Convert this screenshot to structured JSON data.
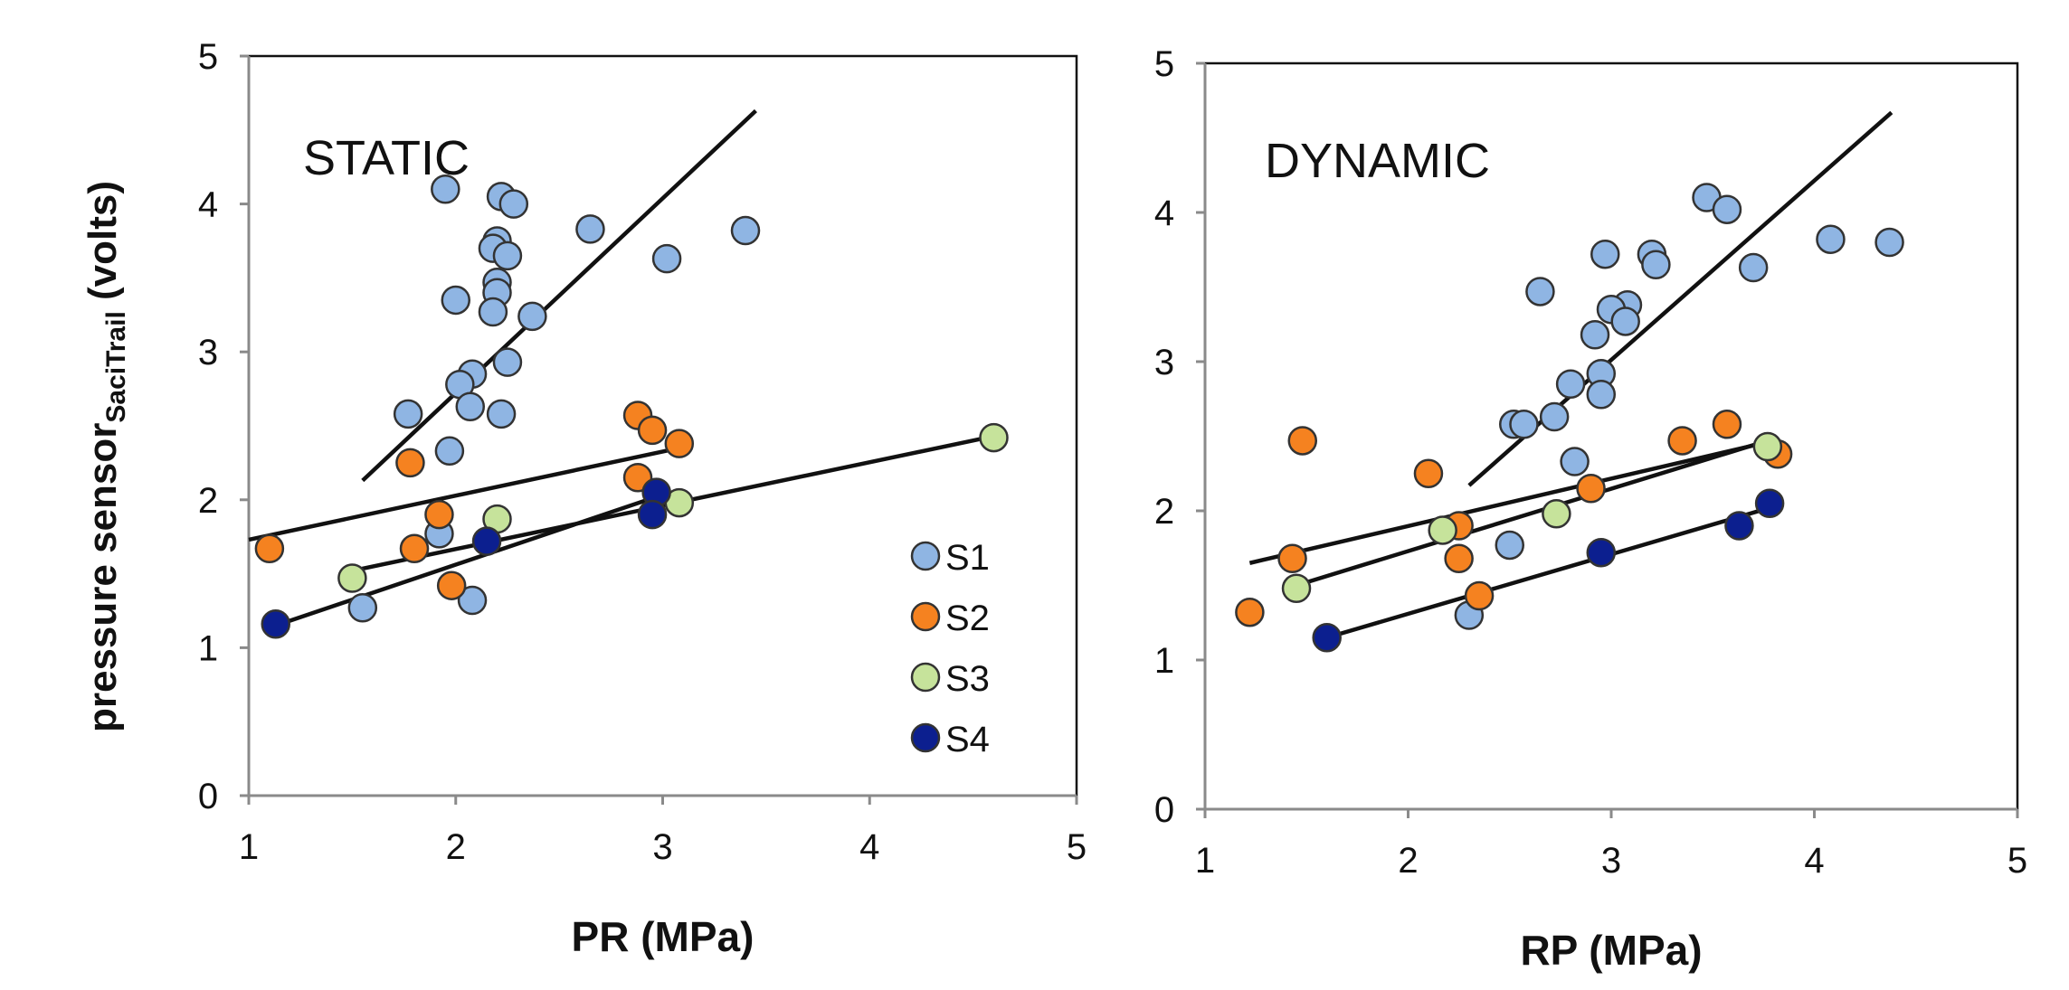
{
  "y_label_main": "pressure sensor",
  "y_label_sub": "SaciTrail",
  "y_label_unit": " (volts)",
  "legend": [
    {
      "label": "S1",
      "color": "#8fb5e3"
    },
    {
      "label": "S2",
      "color": "#f58220"
    },
    {
      "label": "S3",
      "color": "#c6e39b"
    },
    {
      "label": "S4",
      "color": "#0c1f8f"
    }
  ],
  "chart_data": [
    {
      "type": "scatter",
      "annotation": "STATIC",
      "xlabel": "PR (MPa)",
      "xlim": [
        1,
        5
      ],
      "ylim": [
        0,
        5
      ],
      "xticks": [
        "1",
        "2",
        "3",
        "4",
        "5"
      ],
      "yticks": [
        "0",
        "1",
        "2",
        "3",
        "4",
        "5"
      ],
      "series": [
        {
          "name": "S1",
          "color": "#8fb5e3",
          "points": [
            [
              1.95,
              4.1
            ],
            [
              2.22,
              4.05
            ],
            [
              2.28,
              4.0
            ],
            [
              2.65,
              3.83
            ],
            [
              3.4,
              3.82
            ],
            [
              2.2,
              3.75
            ],
            [
              2.18,
              3.7
            ],
            [
              2.25,
              3.65
            ],
            [
              3.02,
              3.63
            ],
            [
              2.2,
              3.47
            ],
            [
              2.2,
              3.4
            ],
            [
              2.0,
              3.35
            ],
            [
              2.18,
              3.27
            ],
            [
              2.37,
              3.24
            ],
            [
              2.25,
              2.93
            ],
            [
              2.08,
              2.85
            ],
            [
              2.02,
              2.78
            ],
            [
              1.77,
              2.58
            ],
            [
              2.07,
              2.63
            ],
            [
              2.22,
              2.58
            ],
            [
              1.97,
              2.33
            ],
            [
              1.92,
              1.77
            ],
            [
              1.55,
              1.27
            ],
            [
              2.08,
              1.32
            ]
          ],
          "fit": [
            [
              1.55,
              2.13
            ],
            [
              3.45,
              4.63
            ]
          ]
        },
        {
          "name": "S2",
          "color": "#f58220",
          "points": [
            [
              1.78,
              2.25
            ],
            [
              2.88,
              2.57
            ],
            [
              2.95,
              2.47
            ],
            [
              3.08,
              2.38
            ],
            [
              2.88,
              2.15
            ],
            [
              1.92,
              1.9
            ],
            [
              1.8,
              1.67
            ],
            [
              1.1,
              1.67
            ],
            [
              1.98,
              1.42
            ]
          ],
          "fit": [
            [
              1.0,
              1.73
            ],
            [
              3.08,
              2.35
            ]
          ]
        },
        {
          "name": "S3",
          "color": "#c6e39b",
          "points": [
            [
              4.6,
              2.42
            ],
            [
              2.2,
              1.87
            ],
            [
              3.08,
              1.98
            ],
            [
              1.5,
              1.47
            ]
          ],
          "fit": [
            [
              1.5,
              1.52
            ],
            [
              4.6,
              2.43
            ]
          ]
        },
        {
          "name": "S4",
          "color": "#0c1f8f",
          "points": [
            [
              2.97,
              2.05
            ],
            [
              2.95,
              1.9
            ],
            [
              2.15,
              1.72
            ],
            [
              1.13,
              1.16
            ]
          ],
          "fit": [
            [
              1.13,
              1.15
            ],
            [
              2.97,
              2.02
            ]
          ]
        }
      ]
    },
    {
      "type": "scatter",
      "annotation": "DYNAMIC",
      "xlabel": "RP (MPa)",
      "xlim": [
        1,
        5
      ],
      "ylim": [
        0,
        5
      ],
      "xticks": [
        "1",
        "2",
        "3",
        "4",
        "5"
      ],
      "yticks": [
        "0",
        "1",
        "2",
        "3",
        "4",
        "5"
      ],
      "series": [
        {
          "name": "S1",
          "color": "#8fb5e3",
          "points": [
            [
              3.47,
              4.1
            ],
            [
              3.57,
              4.02
            ],
            [
              4.08,
              3.82
            ],
            [
              4.37,
              3.8
            ],
            [
              3.2,
              3.72
            ],
            [
              2.97,
              3.72
            ],
            [
              3.22,
              3.65
            ],
            [
              3.7,
              3.63
            ],
            [
              2.65,
              3.47
            ],
            [
              3.08,
              3.38
            ],
            [
              3.0,
              3.35
            ],
            [
              3.07,
              3.27
            ],
            [
              2.92,
              3.18
            ],
            [
              2.95,
              2.92
            ],
            [
              2.8,
              2.85
            ],
            [
              2.95,
              2.78
            ],
            [
              2.72,
              2.63
            ],
            [
              2.52,
              2.58
            ],
            [
              2.57,
              2.58
            ],
            [
              2.82,
              2.33
            ],
            [
              2.5,
              1.77
            ],
            [
              2.3,
              1.3
            ]
          ],
          "fit": [
            [
              2.3,
              2.17
            ],
            [
              4.38,
              4.67
            ]
          ]
        },
        {
          "name": "S2",
          "color": "#f58220",
          "points": [
            [
              1.48,
              2.47
            ],
            [
              3.57,
              2.58
            ],
            [
              3.35,
              2.47
            ],
            [
              3.82,
              2.38
            ],
            [
              2.1,
              2.25
            ],
            [
              2.9,
              2.15
            ],
            [
              2.25,
              1.9
            ],
            [
              1.43,
              1.68
            ],
            [
              2.25,
              1.68
            ],
            [
              2.35,
              1.43
            ],
            [
              1.22,
              1.32
            ]
          ],
          "fit": [
            [
              1.22,
              1.65
            ],
            [
              3.8,
              2.47
            ]
          ]
        },
        {
          "name": "S3",
          "color": "#c6e39b",
          "points": [
            [
              3.77,
              2.43
            ],
            [
              2.73,
              1.98
            ],
            [
              2.17,
              1.87
            ],
            [
              1.45,
              1.48
            ]
          ],
          "fit": [
            [
              1.45,
              1.5
            ],
            [
              3.77,
              2.47
            ]
          ]
        },
        {
          "name": "S4",
          "color": "#0c1f8f",
          "points": [
            [
              3.78,
              2.05
            ],
            [
              3.63,
              1.9
            ],
            [
              2.95,
              1.72
            ],
            [
              1.6,
              1.15
            ]
          ],
          "fit": [
            [
              1.6,
              1.15
            ],
            [
              3.78,
              2.02
            ]
          ]
        }
      ]
    }
  ]
}
